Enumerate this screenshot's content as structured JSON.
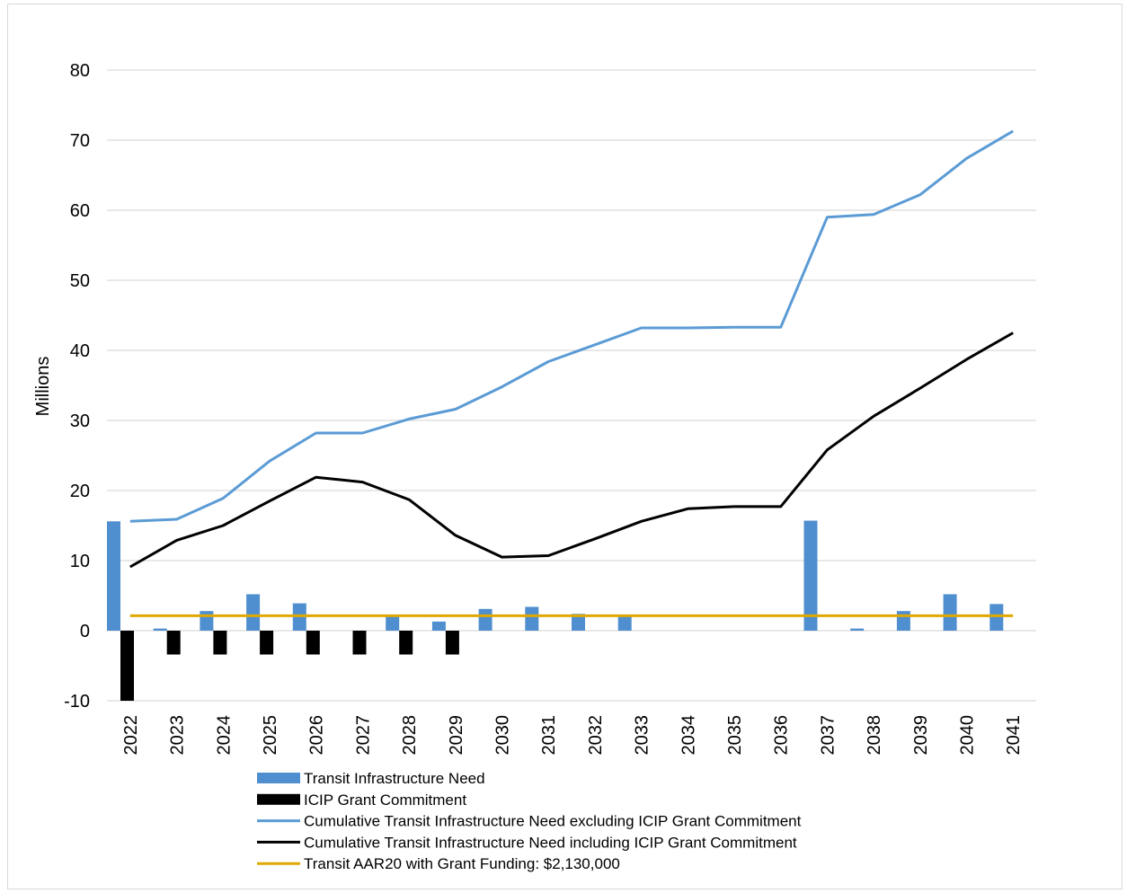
{
  "chart_data": {
    "type": "bar",
    "title": "",
    "xlabel": "",
    "ylabel": "Millions",
    "ylim": [
      -10,
      80
    ],
    "yticks": [
      -10,
      0,
      10,
      20,
      30,
      40,
      50,
      60,
      70,
      80
    ],
    "grid": true,
    "legend_position": "bottom",
    "categories": [
      "2022",
      "2023",
      "2024",
      "2025",
      "2026",
      "2027",
      "2028",
      "2029",
      "2030",
      "2031",
      "2032",
      "2033",
      "2034",
      "2035",
      "2036",
      "2037",
      "2038",
      "2039",
      "2040",
      "2041"
    ],
    "series": [
      {
        "name": "Transit Infrastructure Need",
        "type": "bar",
        "color": "#4f8fcf",
        "values": [
          15.6,
          0.3,
          2.8,
          5.2,
          3.9,
          0,
          2.1,
          1.3,
          3.1,
          3.4,
          2.4,
          2.2,
          0,
          0,
          0,
          15.7,
          0.3,
          2.8,
          5.2,
          3.8
        ]
      },
      {
        "name": "ICIP Grant Commitment",
        "type": "bar",
        "color": "#000000",
        "values": [
          -10.0,
          -3.4,
          -3.4,
          -3.4,
          -3.4,
          -3.4,
          -3.4,
          -3.4,
          0,
          0,
          0,
          0,
          0,
          0,
          0,
          0,
          0,
          0,
          0,
          0
        ]
      },
      {
        "name": "Cumulative Transit Infrastructure Need excluding ICIP Grant Commitment",
        "type": "line",
        "color": "#5b9bd5",
        "values": [
          15.6,
          15.9,
          18.9,
          24.2,
          28.2,
          28.2,
          30.2,
          31.6,
          34.8,
          38.4,
          40.8,
          43.2,
          43.2,
          43.3,
          43.3,
          59.0,
          59.4,
          62.2,
          67.4,
          71.3
        ]
      },
      {
        "name": "Cumulative Transit Infrastructure Need including ICIP Grant Commitment",
        "type": "line",
        "color": "#000000",
        "values": [
          9.1,
          12.9,
          15.0,
          18.5,
          21.9,
          21.2,
          18.7,
          13.6,
          10.5,
          10.7,
          13.1,
          15.6,
          17.4,
          17.7,
          17.7,
          25.8,
          30.6,
          34.6,
          38.7,
          42.5
        ]
      },
      {
        "name": "Transit AAR20 with Grant Funding: $2,130,000",
        "type": "line",
        "color": "#e0a800",
        "values": [
          2.13,
          2.13,
          2.13,
          2.13,
          2.13,
          2.13,
          2.13,
          2.13,
          2.13,
          2.13,
          2.13,
          2.13,
          2.13,
          2.13,
          2.13,
          2.13,
          2.13,
          2.13,
          2.13,
          2.13
        ]
      }
    ]
  }
}
